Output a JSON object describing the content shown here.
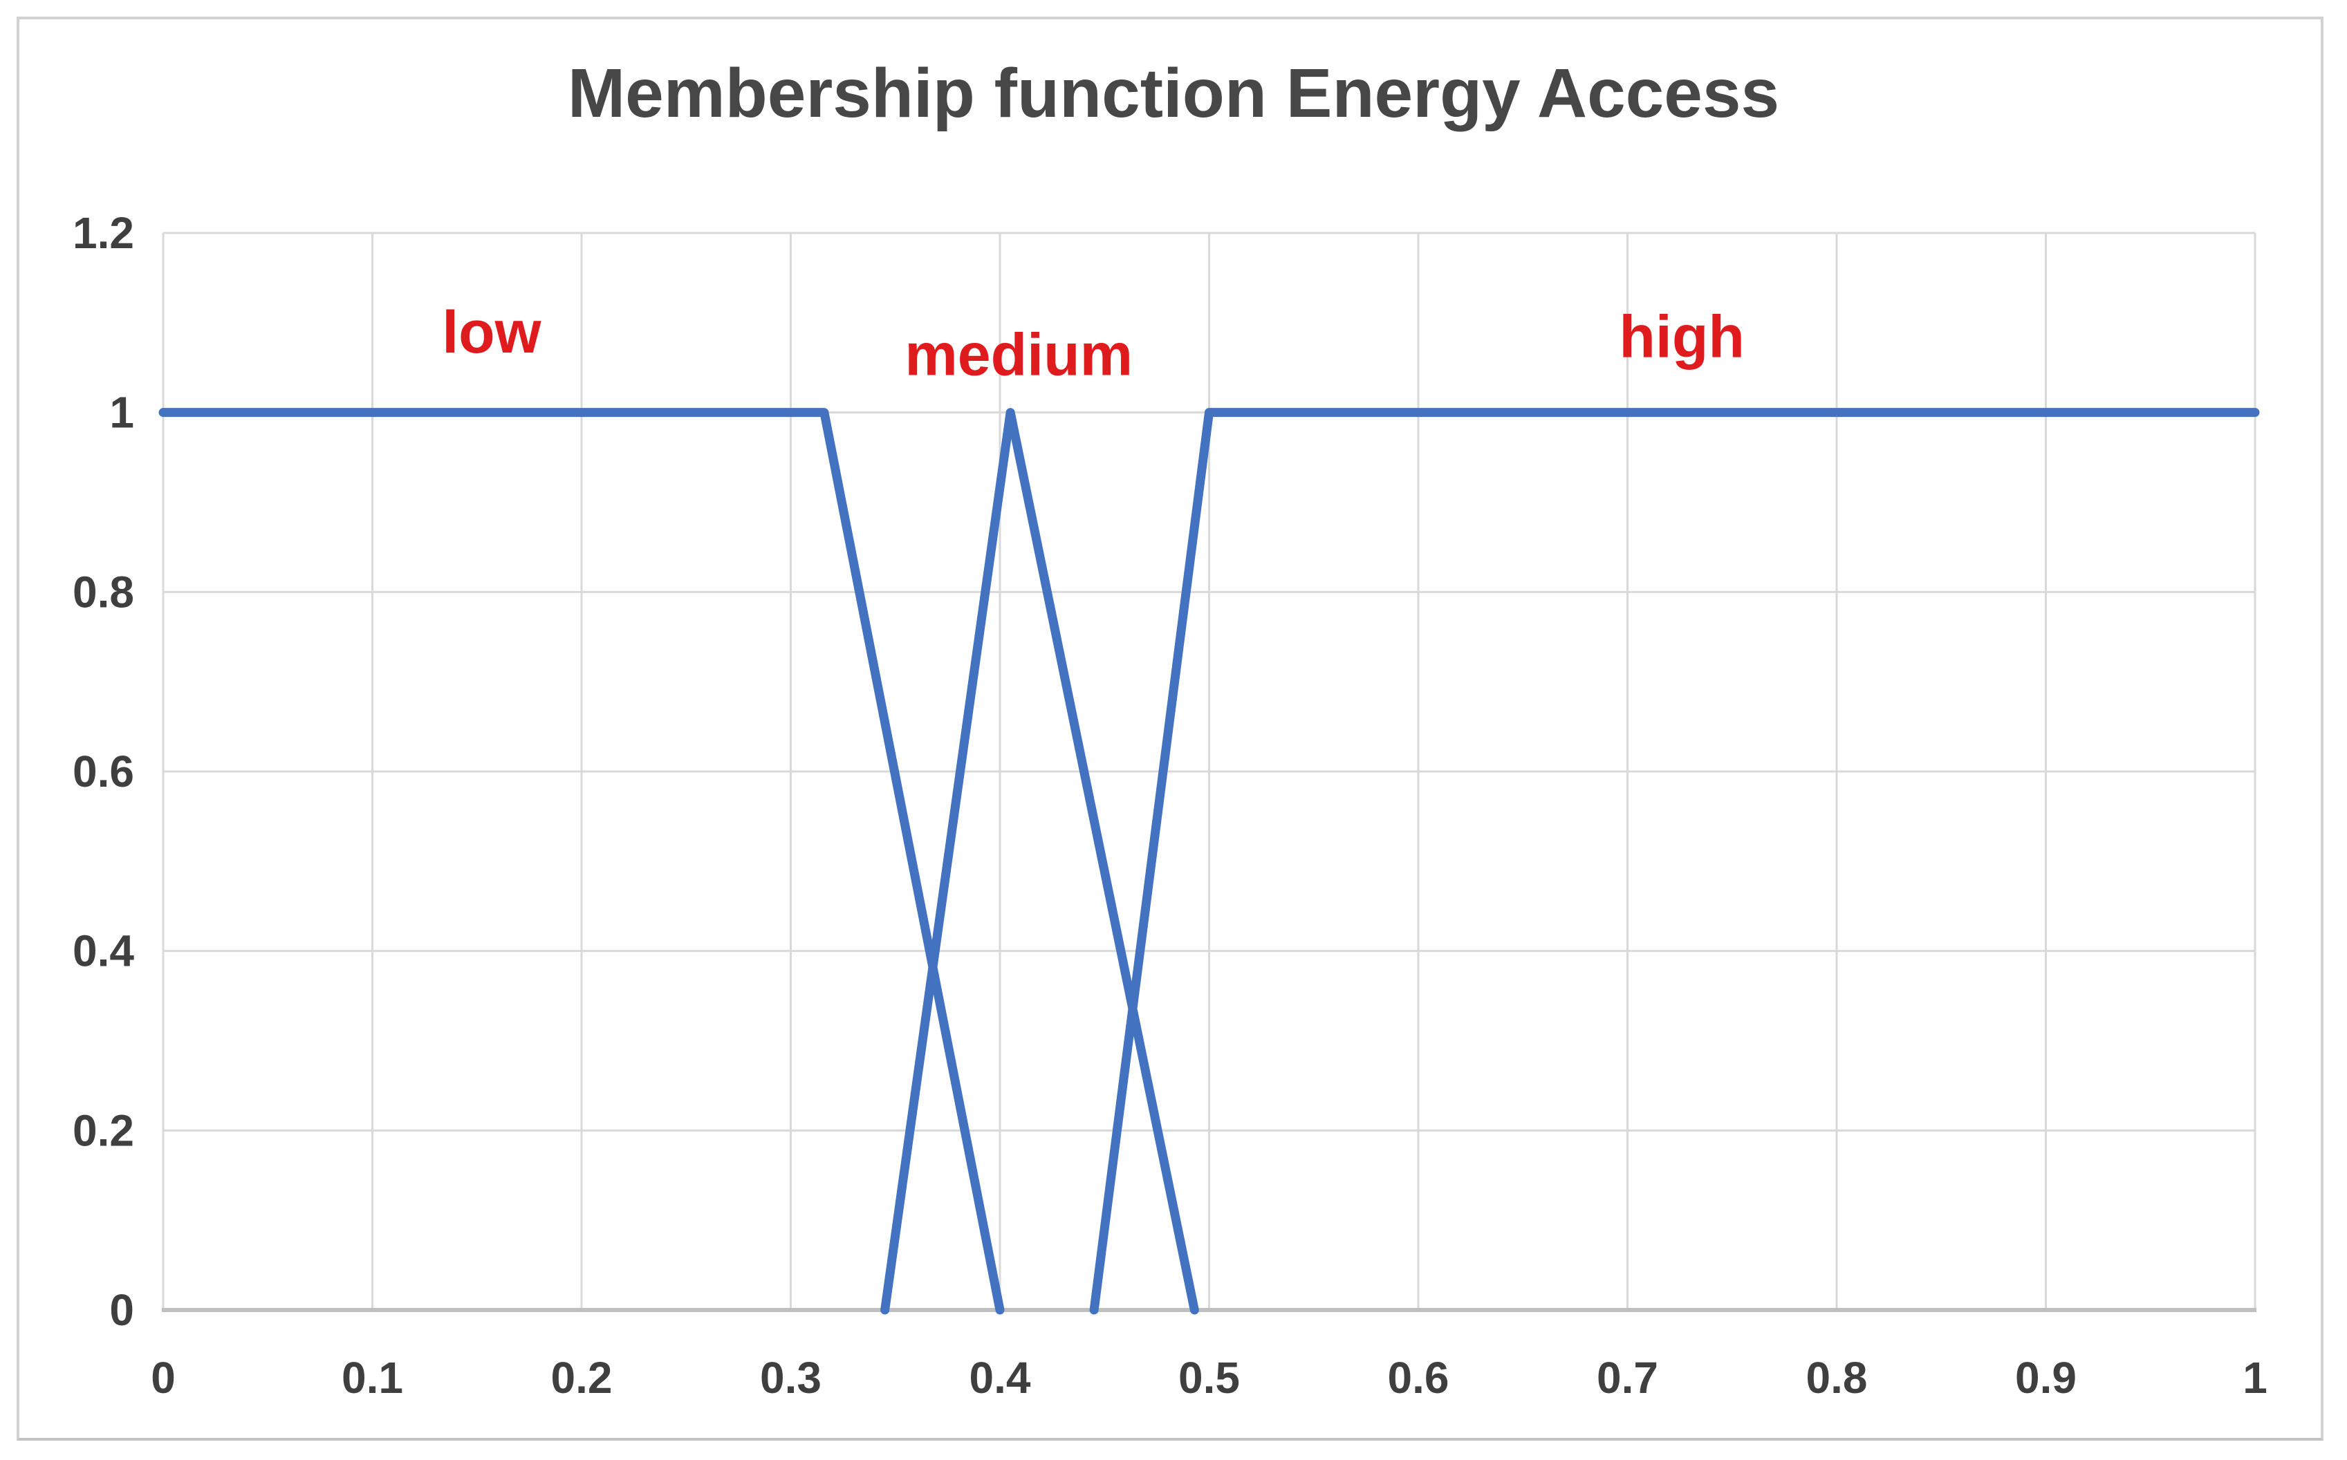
{
  "chart_data": {
    "type": "line",
    "title": "Membership function Energy Access",
    "xlabel": "",
    "ylabel": "",
    "xlim": [
      0,
      1
    ],
    "ylim": [
      0,
      1.2
    ],
    "grid": true,
    "legend_position": "none",
    "x_ticks": [
      0,
      0.1,
      0.2,
      0.3,
      0.4,
      0.5,
      0.6,
      0.7,
      0.8,
      0.9,
      1
    ],
    "x_tick_labels": [
      "0",
      "0.1",
      "0.2",
      "0.3",
      "0.4",
      "0.5",
      "0.6",
      "0.7",
      "0.8",
      "0.9",
      "1"
    ],
    "y_ticks": [
      0,
      0.2,
      0.4,
      0.6,
      0.8,
      1,
      1.2
    ],
    "y_tick_labels": [
      "0",
      "0.2",
      "0.4",
      "0.6",
      "0.8",
      "1",
      "1.2"
    ],
    "series": [
      {
        "name": "low",
        "points": [
          [
            0,
            1
          ],
          [
            0.316,
            1
          ],
          [
            0.4,
            0
          ]
        ]
      },
      {
        "name": "medium",
        "points": [
          [
            0.345,
            0
          ],
          [
            0.405,
            1
          ],
          [
            0.493,
            0
          ]
        ]
      },
      {
        "name": "high",
        "points": [
          [
            0.445,
            0
          ],
          [
            0.5,
            1
          ],
          [
            1,
            1
          ]
        ]
      }
    ],
    "annotations": [
      {
        "text": "low",
        "x": 0.157,
        "y": 1.09
      },
      {
        "text": "medium",
        "x": 0.409,
        "y": 1.065
      },
      {
        "text": "high",
        "x": 0.726,
        "y": 1.085
      }
    ],
    "colors": {
      "line": "#4272C0",
      "annotation": "#E01B1D",
      "gridline": "#D9D9D9",
      "axis_line": "#BFBFBF",
      "tick_label": "#3F3F3F",
      "title": "#474747",
      "frame_border": "#D2D2D2",
      "background": "#FFFFFF"
    }
  }
}
